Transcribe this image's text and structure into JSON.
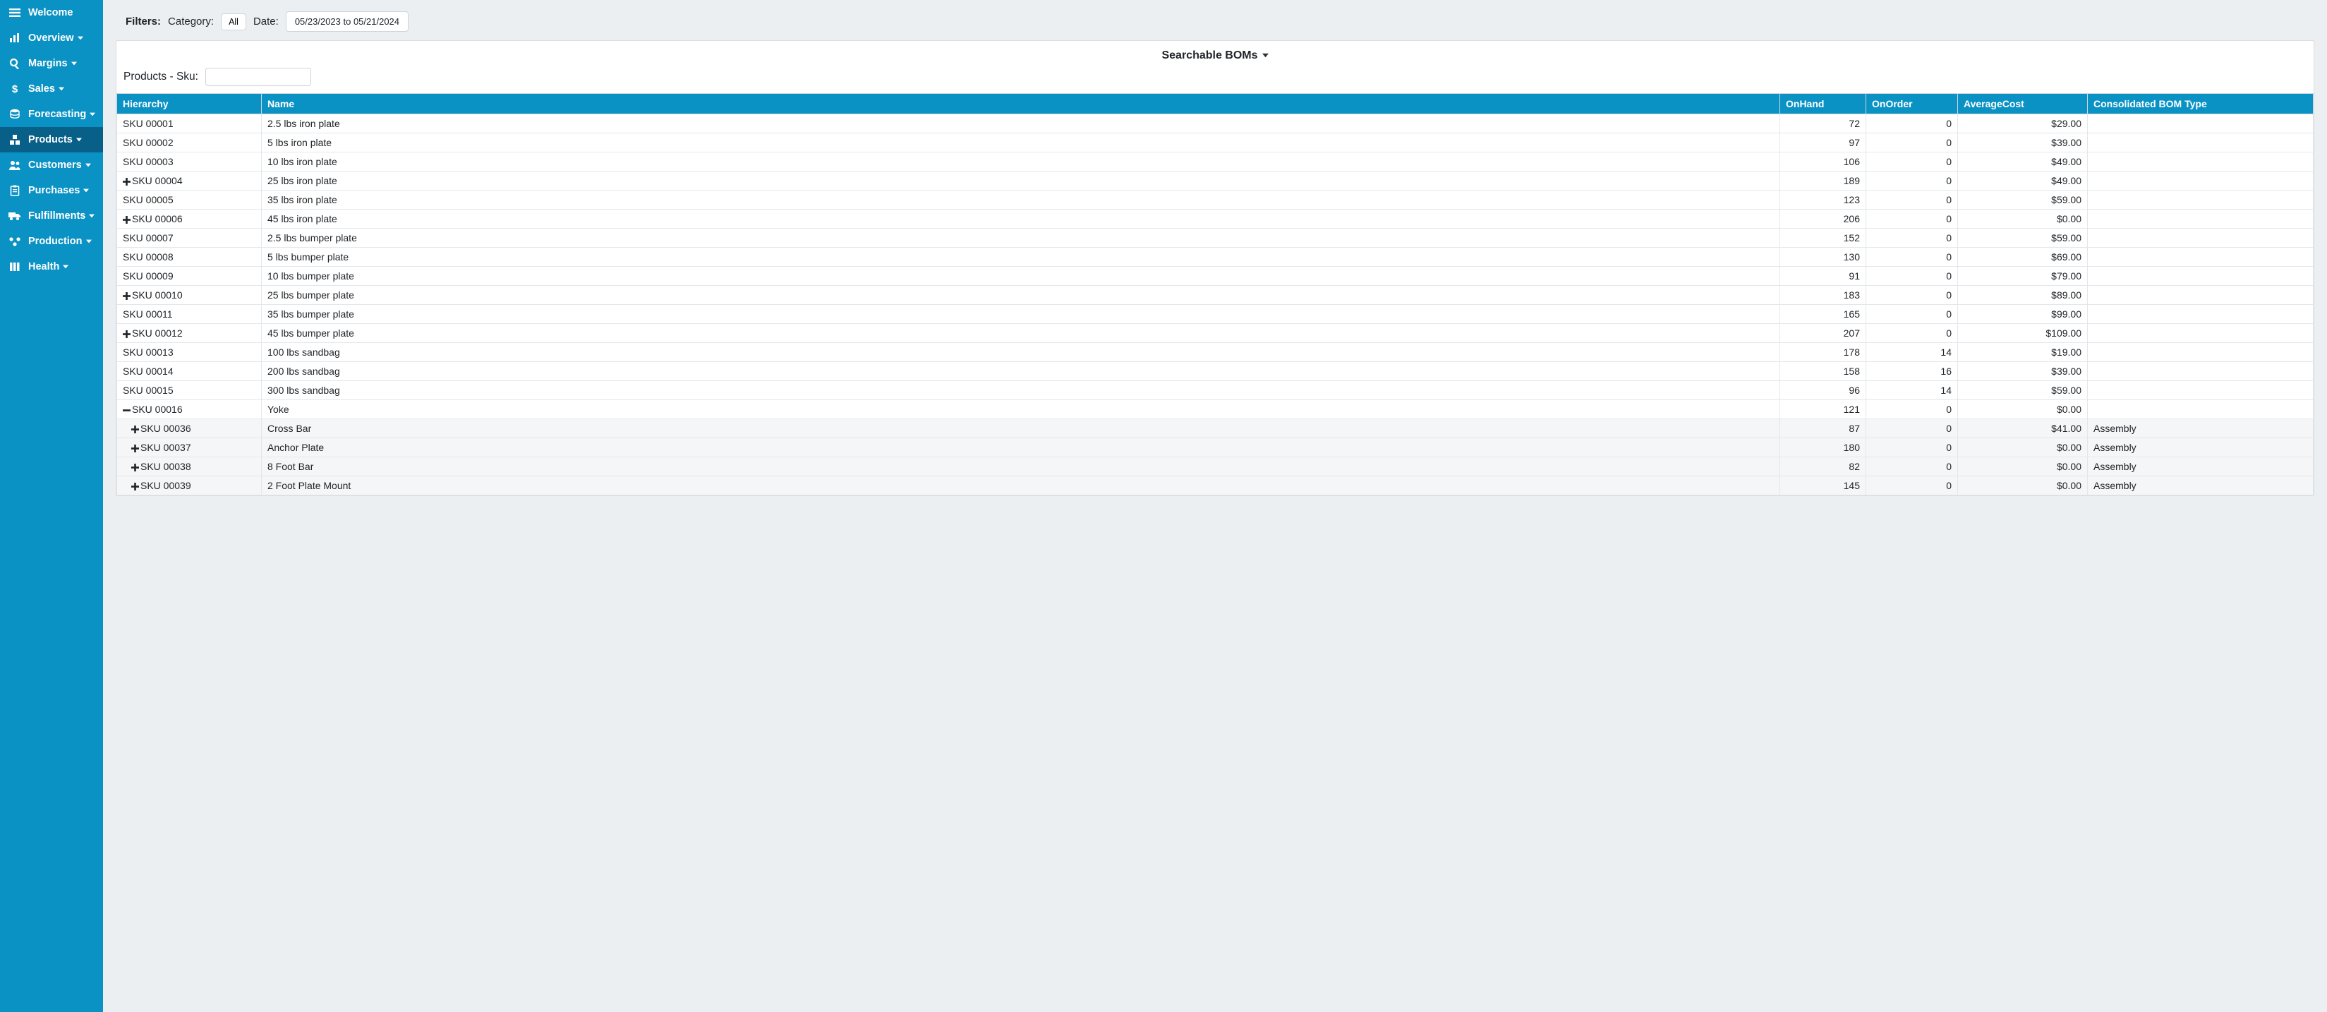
{
  "colors": {
    "sidebar_bg": "#0b92c4",
    "sidebar_active_bg": "#086089",
    "thead_bg": "#0b92c4",
    "body_bg": "#eceff1",
    "border": "#d0d7dd",
    "child_row_bg": "#f5f6f7"
  },
  "sidebar": {
    "items": [
      {
        "label": "Welcome",
        "icon": "menu",
        "has_caret": false,
        "active": false
      },
      {
        "label": "Overview",
        "icon": "chart-bar",
        "has_caret": true,
        "active": false
      },
      {
        "label": "Margins",
        "icon": "search",
        "has_caret": true,
        "active": false
      },
      {
        "label": "Sales",
        "icon": "dollar",
        "has_caret": true,
        "active": false
      },
      {
        "label": "Forecasting",
        "icon": "database",
        "has_caret": true,
        "active": false
      },
      {
        "label": "Products",
        "icon": "boxes",
        "has_caret": true,
        "active": true
      },
      {
        "label": "Customers",
        "icon": "users",
        "has_caret": true,
        "active": false
      },
      {
        "label": "Purchases",
        "icon": "clipboard",
        "has_caret": true,
        "active": false
      },
      {
        "label": "Fulfillments",
        "icon": "truck",
        "has_caret": true,
        "active": false
      },
      {
        "label": "Production",
        "icon": "cluster",
        "has_caret": true,
        "active": false
      },
      {
        "label": "Health",
        "icon": "grid",
        "has_caret": true,
        "active": false
      }
    ]
  },
  "filters": {
    "title": "Filters:",
    "category_label": "Category:",
    "category_value": "All",
    "date_label": "Date:",
    "date_range_value": "05/23/2023 to 05/21/2024"
  },
  "card": {
    "title": "Searchable BOMs",
    "sku_filter_label": "Products - Sku:",
    "sku_filter_value": ""
  },
  "table": {
    "columns": [
      {
        "key": "hierarchy",
        "label": "Hierarchy",
        "align": "left"
      },
      {
        "key": "name",
        "label": "Name",
        "align": "left"
      },
      {
        "key": "onhand",
        "label": "OnHand",
        "align": "right"
      },
      {
        "key": "onorder",
        "label": "OnOrder",
        "align": "right"
      },
      {
        "key": "avgcost",
        "label": "AverageCost",
        "align": "right"
      },
      {
        "key": "bomtype",
        "label": "Consolidated BOM Type",
        "align": "left"
      }
    ],
    "rows": [
      {
        "sku": "SKU 00001",
        "name": "2.5 lbs iron plate",
        "onhand": "72",
        "onorder": "0",
        "avgcost": "$29.00",
        "bomtype": "",
        "expand": "none",
        "child": false
      },
      {
        "sku": "SKU 00002",
        "name": "5 lbs iron plate",
        "onhand": "97",
        "onorder": "0",
        "avgcost": "$39.00",
        "bomtype": "",
        "expand": "none",
        "child": false
      },
      {
        "sku": "SKU 00003",
        "name": "10 lbs iron plate",
        "onhand": "106",
        "onorder": "0",
        "avgcost": "$49.00",
        "bomtype": "",
        "expand": "none",
        "child": false
      },
      {
        "sku": "SKU 00004",
        "name": "25 lbs iron plate",
        "onhand": "189",
        "onorder": "0",
        "avgcost": "$49.00",
        "bomtype": "",
        "expand": "plus",
        "child": false
      },
      {
        "sku": "SKU 00005",
        "name": "35 lbs iron plate",
        "onhand": "123",
        "onorder": "0",
        "avgcost": "$59.00",
        "bomtype": "",
        "expand": "none",
        "child": false
      },
      {
        "sku": "SKU 00006",
        "name": "45 lbs iron plate",
        "onhand": "206",
        "onorder": "0",
        "avgcost": "$0.00",
        "bomtype": "",
        "expand": "plus",
        "child": false
      },
      {
        "sku": "SKU 00007",
        "name": "2.5 lbs bumper plate",
        "onhand": "152",
        "onorder": "0",
        "avgcost": "$59.00",
        "bomtype": "",
        "expand": "none",
        "child": false
      },
      {
        "sku": "SKU 00008",
        "name": "5 lbs bumper plate",
        "onhand": "130",
        "onorder": "0",
        "avgcost": "$69.00",
        "bomtype": "",
        "expand": "none",
        "child": false
      },
      {
        "sku": "SKU 00009",
        "name": "10 lbs bumper plate",
        "onhand": "91",
        "onorder": "0",
        "avgcost": "$79.00",
        "bomtype": "",
        "expand": "none",
        "child": false
      },
      {
        "sku": "SKU 00010",
        "name": "25 lbs bumper plate",
        "onhand": "183",
        "onorder": "0",
        "avgcost": "$89.00",
        "bomtype": "",
        "expand": "plus",
        "child": false
      },
      {
        "sku": "SKU 00011",
        "name": "35 lbs bumper plate",
        "onhand": "165",
        "onorder": "0",
        "avgcost": "$99.00",
        "bomtype": "",
        "expand": "none",
        "child": false
      },
      {
        "sku": "SKU 00012",
        "name": "45 lbs bumper plate",
        "onhand": "207",
        "onorder": "0",
        "avgcost": "$109.00",
        "bomtype": "",
        "expand": "plus",
        "child": false
      },
      {
        "sku": "SKU 00013",
        "name": "100 lbs sandbag",
        "onhand": "178",
        "onorder": "14",
        "avgcost": "$19.00",
        "bomtype": "",
        "expand": "none",
        "child": false
      },
      {
        "sku": "SKU 00014",
        "name": "200 lbs sandbag",
        "onhand": "158",
        "onorder": "16",
        "avgcost": "$39.00",
        "bomtype": "",
        "expand": "none",
        "child": false
      },
      {
        "sku": "SKU 00015",
        "name": "300 lbs sandbag",
        "onhand": "96",
        "onorder": "14",
        "avgcost": "$59.00",
        "bomtype": "",
        "expand": "none",
        "child": false
      },
      {
        "sku": "SKU 00016",
        "name": "Yoke",
        "onhand": "121",
        "onorder": "0",
        "avgcost": "$0.00",
        "bomtype": "",
        "expand": "minus",
        "child": false
      },
      {
        "sku": "SKU 00036",
        "name": "Cross Bar",
        "onhand": "87",
        "onorder": "0",
        "avgcost": "$41.00",
        "bomtype": "Assembly",
        "expand": "plus",
        "child": true
      },
      {
        "sku": "SKU 00037",
        "name": "Anchor Plate",
        "onhand": "180",
        "onorder": "0",
        "avgcost": "$0.00",
        "bomtype": "Assembly",
        "expand": "plus",
        "child": true
      },
      {
        "sku": "SKU 00038",
        "name": "8 Foot Bar",
        "onhand": "82",
        "onorder": "0",
        "avgcost": "$0.00",
        "bomtype": "Assembly",
        "expand": "plus",
        "child": true
      },
      {
        "sku": "SKU 00039",
        "name": "2 Foot Plate Mount",
        "onhand": "145",
        "onorder": "0",
        "avgcost": "$0.00",
        "bomtype": "Assembly",
        "expand": "plus",
        "child": true
      }
    ]
  }
}
